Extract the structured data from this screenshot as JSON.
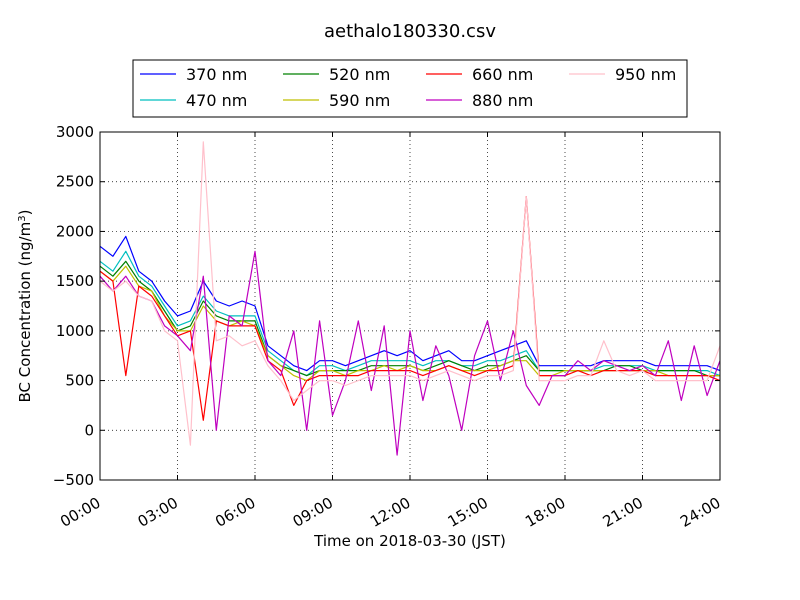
{
  "chart_data": {
    "type": "line",
    "title": "aethalo180330.csv",
    "xlabel": "Time on 2018-03-30 (JST)",
    "ylabel": "BC Concentration (ng/m",
    "ylabel_sup": "3",
    "ylabel_end": ")",
    "xlim": [
      0,
      24
    ],
    "ylim": [
      -500,
      3000
    ],
    "x_ticks": [
      0,
      3,
      6,
      9,
      12,
      15,
      18,
      21,
      24
    ],
    "x_tick_labels": [
      "00:00",
      "03:00",
      "06:00",
      "09:00",
      "12:00",
      "15:00",
      "18:00",
      "21:00",
      "24:00"
    ],
    "y_ticks": [
      -500,
      0,
      500,
      1000,
      1500,
      2000,
      2500,
      3000
    ],
    "y_tick_labels": [
      "−500",
      "0",
      "500",
      "1000",
      "1500",
      "2000",
      "2500",
      "3000"
    ],
    "grid": true,
    "legend_position": "top",
    "x": [
      0.0,
      0.5,
      1.0,
      1.5,
      2.0,
      2.5,
      3.0,
      3.5,
      4.0,
      4.5,
      5.0,
      5.5,
      6.0,
      6.5,
      7.0,
      7.5,
      8.0,
      8.5,
      9.0,
      9.5,
      10.0,
      10.5,
      11.0,
      11.5,
      12.0,
      12.5,
      13.0,
      13.5,
      14.0,
      14.5,
      15.0,
      15.5,
      16.0,
      16.5,
      17.0,
      17.5,
      18.0,
      18.5,
      19.0,
      19.5,
      20.0,
      20.5,
      21.0,
      21.5,
      22.0,
      22.5,
      23.0,
      23.5,
      24.0
    ],
    "series": [
      {
        "name": "370 nm",
        "color": "#0000ff",
        "values": [
          1850,
          1750,
          1950,
          1600,
          1500,
          1300,
          1150,
          1200,
          1500,
          1300,
          1250,
          1300,
          1250,
          850,
          750,
          650,
          600,
          700,
          700,
          650,
          700,
          750,
          800,
          750,
          800,
          700,
          750,
          800,
          700,
          700,
          750,
          800,
          850,
          900,
          650,
          650,
          650,
          650,
          650,
          700,
          700,
          700,
          700,
          650,
          650,
          650,
          650,
          650,
          600
        ]
      },
      {
        "name": "470 nm",
        "color": "#00bfbf",
        "values": [
          1700,
          1600,
          1800,
          1550,
          1450,
          1250,
          1050,
          1100,
          1350,
          1200,
          1150,
          1150,
          1150,
          800,
          700,
          600,
          550,
          650,
          650,
          600,
          650,
          700,
          700,
          700,
          700,
          650,
          700,
          700,
          650,
          650,
          700,
          700,
          750,
          800,
          600,
          600,
          600,
          600,
          600,
          650,
          650,
          650,
          650,
          600,
          600,
          600,
          600,
          600,
          550
        ]
      },
      {
        "name": "520 nm",
        "color": "#008000",
        "values": [
          1650,
          1550,
          1700,
          1500,
          1400,
          1200,
          1000,
          1050,
          1300,
          1150,
          1100,
          1100,
          1100,
          750,
          650,
          600,
          550,
          600,
          600,
          600,
          600,
          650,
          650,
          650,
          650,
          600,
          650,
          700,
          650,
          600,
          650,
          650,
          700,
          750,
          600,
          600,
          600,
          600,
          600,
          600,
          650,
          650,
          600,
          600,
          600,
          600,
          600,
          550,
          550
        ]
      },
      {
        "name": "590 nm",
        "color": "#bfbf00",
        "values": [
          1600,
          1500,
          1650,
          1450,
          1400,
          1150,
          1000,
          1000,
          1250,
          1100,
          1050,
          1100,
          1050,
          750,
          650,
          550,
          500,
          600,
          600,
          550,
          600,
          600,
          650,
          600,
          650,
          600,
          600,
          650,
          600,
          600,
          600,
          650,
          700,
          700,
          550,
          550,
          600,
          600,
          600,
          600,
          600,
          600,
          600,
          600,
          550,
          550,
          550,
          550,
          550
        ]
      },
      {
        "name": "660 nm",
        "color": "#ff0000",
        "values": [
          1600,
          1500,
          550,
          1450,
          1350,
          1150,
          950,
          1000,
          100,
          1100,
          1050,
          1050,
          1050,
          700,
          600,
          250,
          500,
          550,
          550,
          550,
          550,
          600,
          600,
          600,
          600,
          550,
          600,
          650,
          600,
          550,
          600,
          600,
          650,
          2350,
          550,
          550,
          550,
          600,
          550,
          600,
          600,
          600,
          600,
          550,
          550,
          550,
          550,
          550,
          500
        ]
      },
      {
        "name": "880 nm",
        "color": "#bf00bf",
        "values": [
          1550,
          1400,
          1550,
          1350,
          1300,
          1050,
          950,
          800,
          1550,
          0,
          1150,
          1050,
          1800,
          700,
          550,
          1000,
          0,
          1100,
          150,
          500,
          1100,
          400,
          1050,
          -250,
          1000,
          300,
          850,
          550,
          0,
          750,
          1100,
          500,
          1000,
          450,
          250,
          550,
          550,
          700,
          600,
          700,
          650,
          600,
          650,
          550,
          900,
          300,
          850,
          350,
          700
        ]
      },
      {
        "name": "950 nm",
        "color": "#ffc0cb",
        "values": [
          1500,
          1400,
          1500,
          1350,
          1300,
          1000,
          900,
          -150,
          2900,
          900,
          950,
          850,
          900,
          650,
          500,
          300,
          400,
          500,
          500,
          450,
          500,
          550,
          550,
          550,
          550,
          500,
          550,
          600,
          550,
          500,
          550,
          550,
          600,
          2350,
          500,
          500,
          500,
          550,
          550,
          900,
          600,
          550,
          600,
          500,
          500,
          500,
          500,
          500,
          850
        ]
      }
    ]
  }
}
